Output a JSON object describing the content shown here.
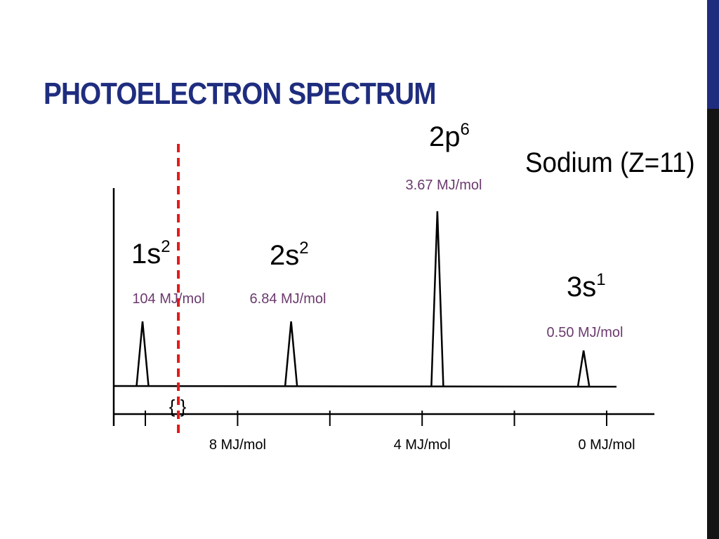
{
  "title": "PHOTOELECTRON SPECTRUM",
  "element": "Sodium (Z=11)",
  "colors": {
    "title": "#1f2d7f",
    "accent_top": "#1f2d7f",
    "accent_bottom": "#141414",
    "energy_label": "#6b3a6e",
    "cutoff_line": "#e21b1b"
  },
  "chart_data": {
    "type": "line",
    "x_axis": {
      "reversed": true,
      "ticks": [
        10,
        8,
        6,
        4,
        2,
        0
      ],
      "tick_labels": [
        "",
        "8 MJ/mol",
        "",
        "4 MJ/mol",
        "",
        "0 MJ/mol"
      ],
      "break_symbol": "{ }"
    },
    "peaks": [
      {
        "orbital": "1s",
        "electrons": "2",
        "energy_label": "104 MJ/mol",
        "energy": 104,
        "relative_height": 2
      },
      {
        "orbital": "2s",
        "electrons": "2",
        "energy_label": "6.84 MJ/mol",
        "energy": 6.84,
        "relative_height": 2
      },
      {
        "orbital": "2p",
        "electrons": "6",
        "energy_label": "3.67 MJ/mol",
        "energy": 3.67,
        "relative_height": 6
      },
      {
        "orbital": "3s",
        "electrons": "1",
        "energy_label": "0.50 MJ/mol",
        "energy": 0.5,
        "relative_height": 1
      }
    ],
    "axis_break_marker": "dashed red vertical line"
  }
}
